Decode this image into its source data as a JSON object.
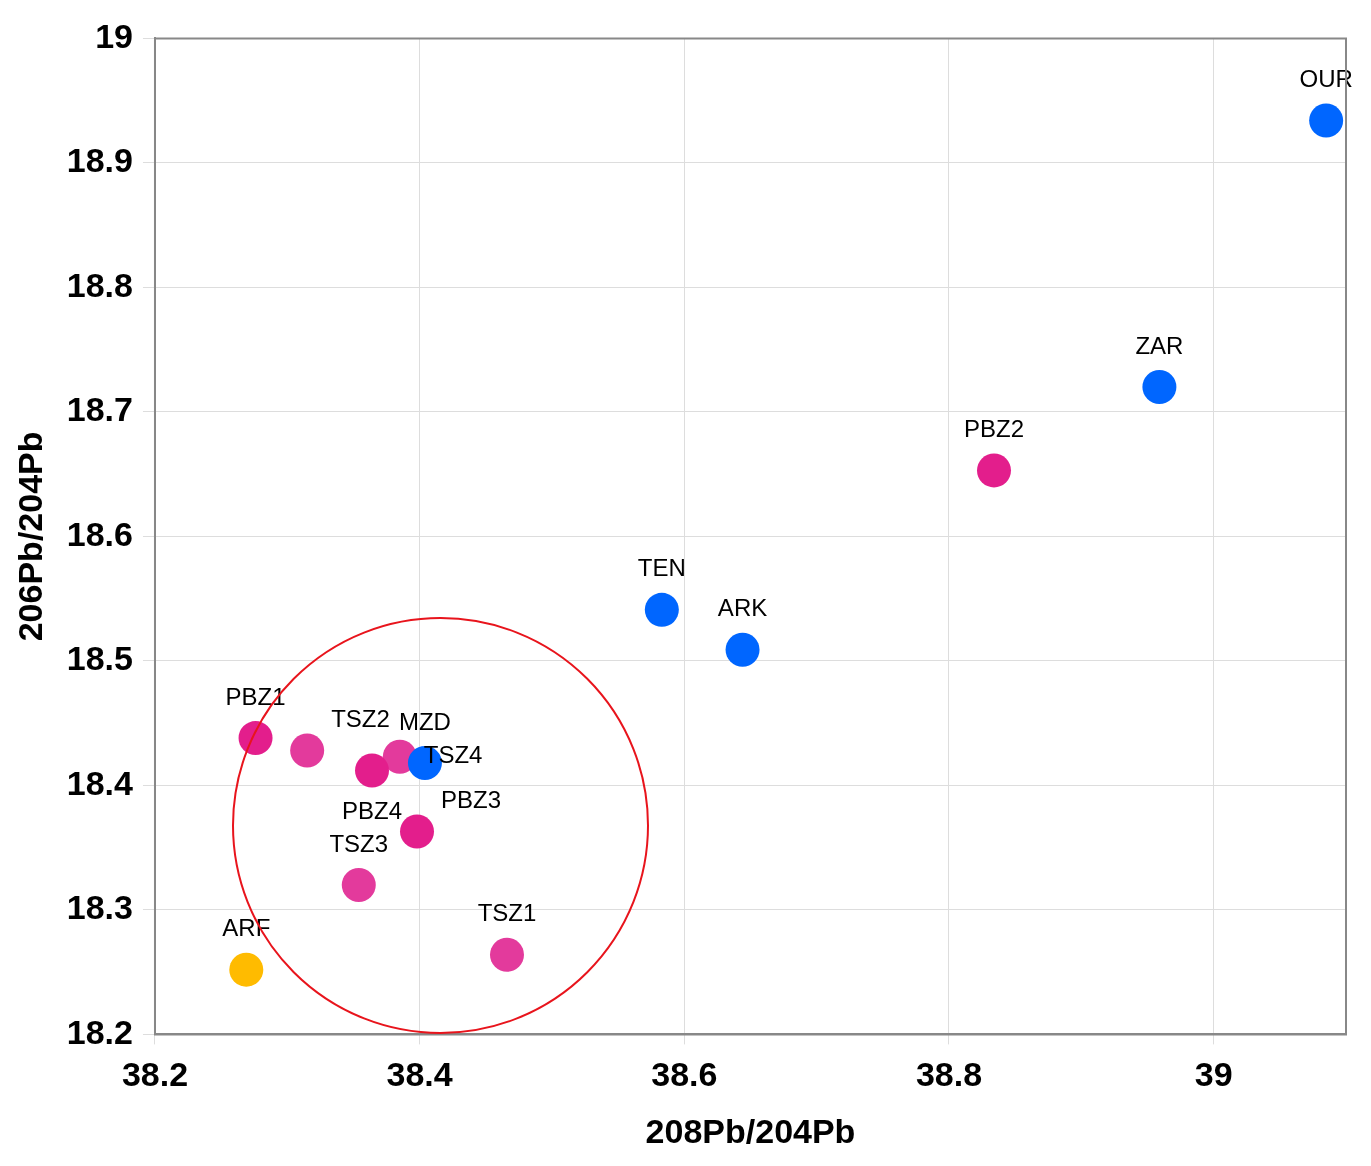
{
  "chart_data": {
    "type": "scatter",
    "xlabel": "208Pb/204Pb",
    "ylabel": "206Pb/204Pb",
    "xlim": [
      38.2,
      39.1
    ],
    "xticks": [
      38.2,
      38.4,
      38.6,
      38.8,
      39
    ],
    "ylim": [
      18.2,
      19
    ],
    "yticks": [
      18.2,
      18.3,
      18.4,
      18.5,
      18.6,
      18.7,
      18.8,
      18.9,
      19
    ],
    "grid": true,
    "legend": false,
    "marker": "circle",
    "series": [
      {
        "color": "#0066ff",
        "x": [
          39.085,
          38.959,
          38.583,
          38.644,
          38.404
        ],
        "values": [
          18.934,
          18.72,
          18.541,
          18.509,
          18.418
        ]
      },
      {
        "color": "#e31e8c",
        "x": [
          38.834,
          38.276,
          38.364,
          38.398
        ],
        "values": [
          18.653,
          18.438,
          18.412,
          18.363
        ]
      },
      {
        "color": "#e33a9c",
        "x": [
          38.315,
          38.385,
          38.354,
          38.466
        ],
        "values": [
          18.428,
          18.423,
          18.32,
          18.264
        ]
      },
      {
        "color": "#ffbb00",
        "x": [
          38.269
        ],
        "values": [
          18.252
        ]
      }
    ],
    "annotations": [
      {
        "text": "OUR",
        "x": 39.085,
        "y": 18.934
      },
      {
        "text": "ZAR",
        "x": 38.959,
        "y": 18.72
      },
      {
        "text": "TEN",
        "x": 38.583,
        "y": 18.541
      },
      {
        "text": "ARK",
        "x": 38.644,
        "y": 18.509
      },
      {
        "text": "MZD",
        "x": 38.404,
        "y": 18.418
      },
      {
        "text": "PBZ2",
        "x": 38.834,
        "y": 18.653
      },
      {
        "text": "PBZ1",
        "x": 38.276,
        "y": 18.438
      },
      {
        "text": "PBZ4",
        "x": 38.364,
        "y": 18.412
      },
      {
        "text": "PBZ3",
        "x": 38.398,
        "y": 18.363
      },
      {
        "text": "TSZ2",
        "x": 38.315,
        "y": 18.428
      },
      {
        "text": "TSZ4",
        "x": 38.385,
        "y": 18.423
      },
      {
        "text": "TSZ3",
        "x": 38.354,
        "y": 18.32
      },
      {
        "text": "TSZ1",
        "x": 38.466,
        "y": 18.264
      },
      {
        "text": "ARF",
        "x": 38.269,
        "y": 18.252
      }
    ]
  }
}
